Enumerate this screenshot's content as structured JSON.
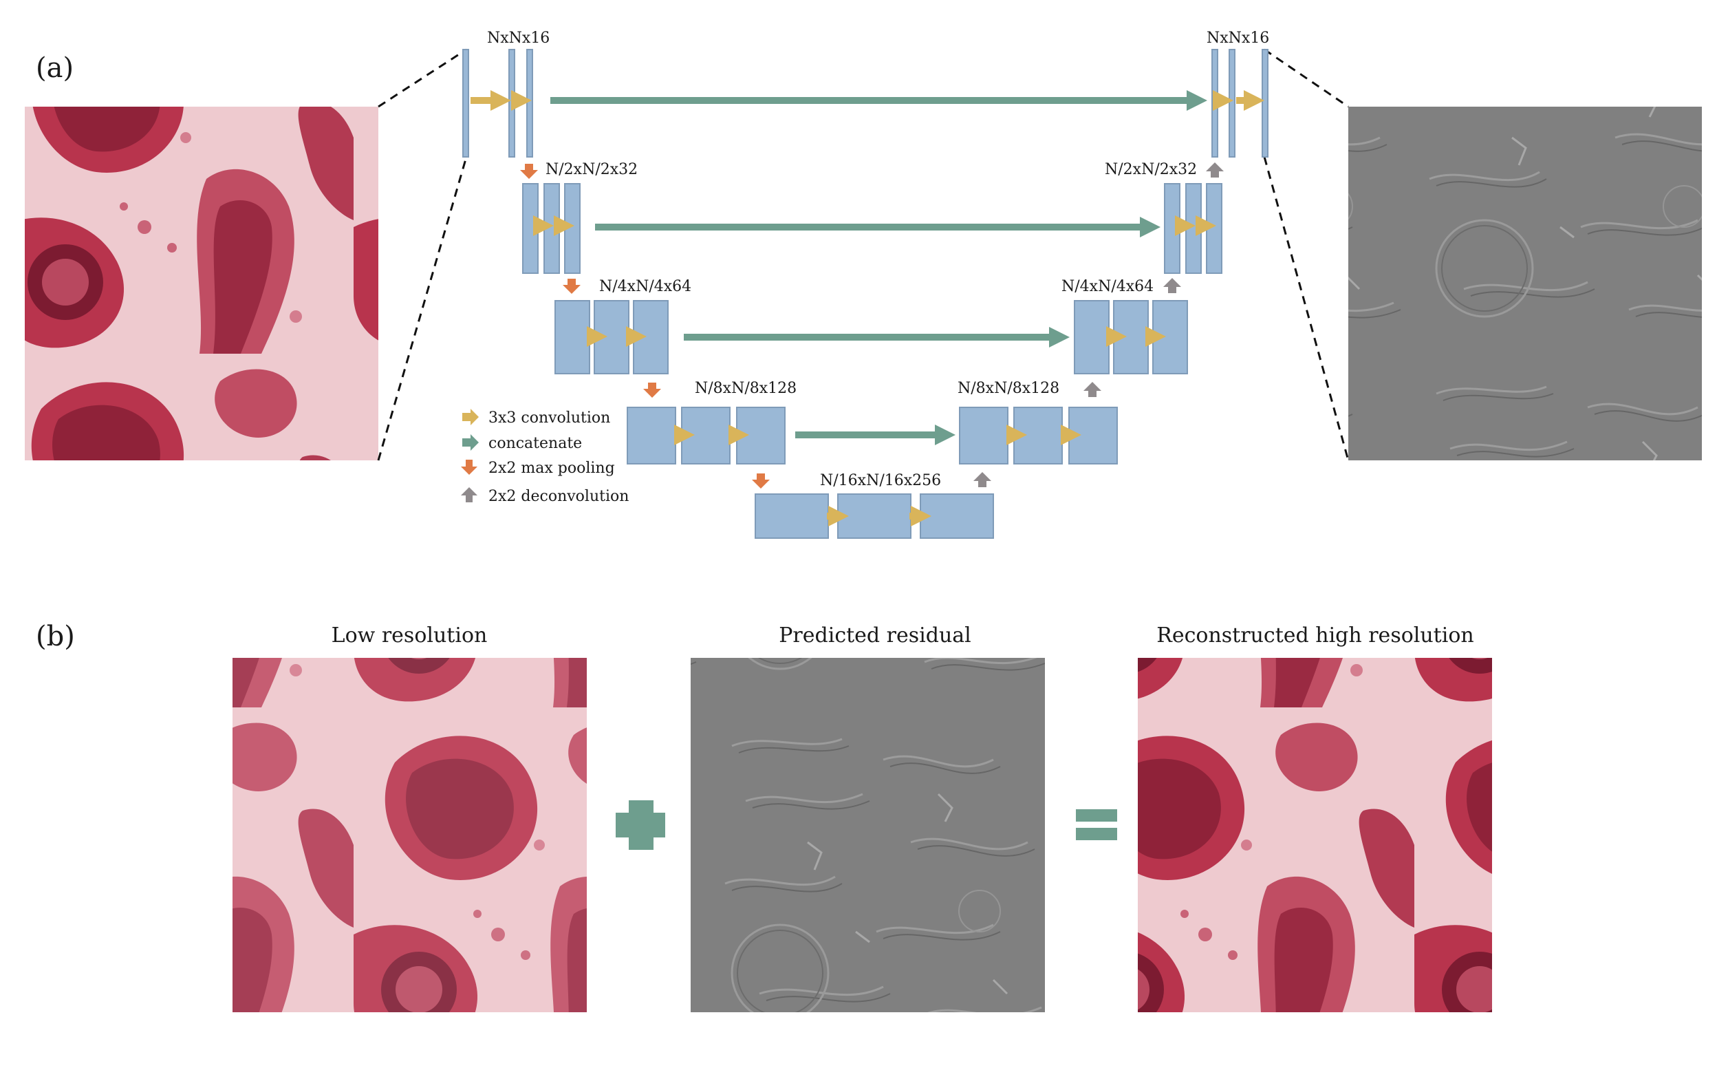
{
  "panel_a": {
    "label": "(a)",
    "levels": [
      {
        "enc_label": "NxNx16",
        "dec_label": "NxNx16"
      },
      {
        "enc_label": "N/2xN/2x32",
        "dec_label": "N/2xN/2x32"
      },
      {
        "enc_label": "N/4xN/4x64",
        "dec_label": "N/4xN/4x64"
      },
      {
        "enc_label": "N/8xN/8x128",
        "dec_label": "N/8xN/8x128"
      },
      {
        "enc_label": "N/16xN/16x256"
      }
    ],
    "legend": [
      {
        "label": "3x3 convolution",
        "color": "#d9b45a",
        "glyph": "arrow-right"
      },
      {
        "label": "concatenate",
        "color": "#6e9e8e",
        "glyph": "arrow-right"
      },
      {
        "label": "2x2 max pooling",
        "color": "#e07a45",
        "glyph": "arrow-down"
      },
      {
        "label": "2x2 deconvolution",
        "color": "#8f8a8c",
        "glyph": "arrow-up"
      }
    ]
  },
  "panel_b": {
    "label": "(b)",
    "titles": [
      "Low resolution",
      "Predicted residual",
      "Reconstructed high resolution"
    ],
    "operators": [
      "plus-symbol",
      "equals-symbol"
    ]
  },
  "colors": {
    "block_fill": "#9ab8d6",
    "block_stroke": "#7f9bb8",
    "conv": "#d9b45a",
    "concat": "#6e9e8e",
    "pool": "#e07a45",
    "deconv": "#8f8a8c",
    "operator": "#6e9e8e",
    "tissue": "#d9848f",
    "residual": "#808080"
  }
}
